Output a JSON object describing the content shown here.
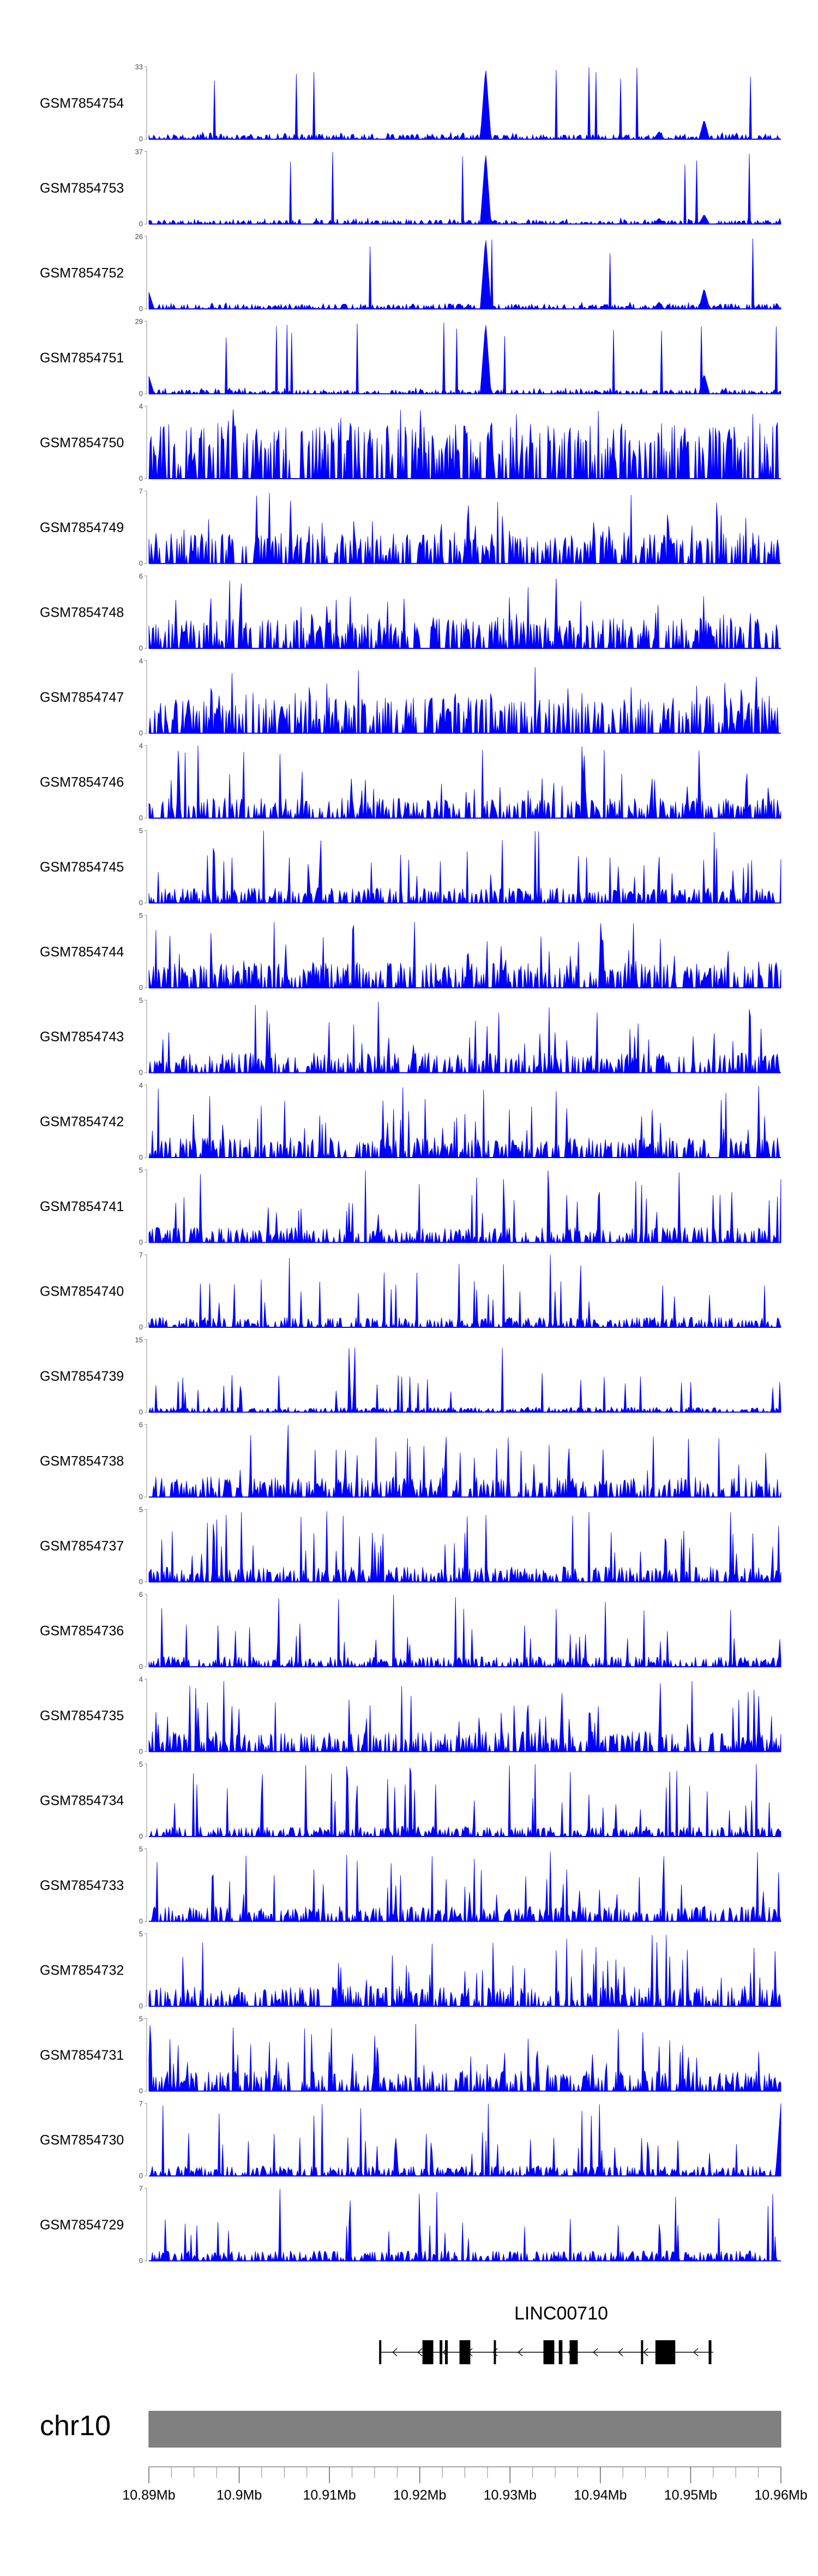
{
  "chart_data": {
    "type": "area",
    "title": "",
    "xlabel": "",
    "ylabel": "",
    "chromosome": "chr10",
    "xlim": [
      10.89,
      10.96
    ],
    "x_unit": "Mb",
    "x_ticks": [
      "10.89Mb",
      "10.9Mb",
      "10.91Mb",
      "10.92Mb",
      "10.93Mb",
      "10.94Mb",
      "10.95Mb",
      "10.96Mb"
    ],
    "x_tick_values": [
      10.89,
      10.9,
      10.91,
      10.92,
      10.93,
      10.94,
      10.95,
      10.96
    ],
    "series_color": "#0000ff",
    "ideogram_color": "#808080",
    "tracks": [
      {
        "name": "GSM7854754",
        "ymax": 33,
        "peaks": [
          [
            10.9273,
            33
          ],
          [
            10.9515,
            9
          ],
          [
            10.9465,
            3.5
          ]
        ],
        "baseline": 0.05,
        "noise": 0.08,
        "seed": 1
      },
      {
        "name": "GSM7854753",
        "ymax": 37,
        "peaks": [
          [
            10.9273,
            37
          ],
          [
            10.9515,
            5
          ],
          [
            10.9465,
            3
          ]
        ],
        "baseline": 0.04,
        "noise": 0.07,
        "seed": 2
      },
      {
        "name": "GSM7854752",
        "ymax": 26,
        "peaks": [
          [
            10.9273,
            26
          ],
          [
            10.9515,
            7.5
          ],
          [
            10.89,
            6
          ],
          [
            10.9465,
            2.5
          ]
        ],
        "baseline": 0.05,
        "noise": 0.08,
        "seed": 3
      },
      {
        "name": "GSM7854751",
        "ymax": 29,
        "peaks": [
          [
            10.9273,
            29
          ],
          [
            10.9515,
            8
          ],
          [
            10.89,
            7
          ]
        ],
        "baseline": 0.04,
        "noise": 0.07,
        "seed": 4
      },
      {
        "name": "GSM7854750",
        "ymax": 4,
        "peaks": [],
        "baseline": 0.55,
        "noise": 0.6,
        "seed": 5
      },
      {
        "name": "GSM7854749",
        "ymax": 7,
        "peaks": [],
        "baseline": 0.3,
        "noise": 0.6,
        "seed": 6
      },
      {
        "name": "GSM7854748",
        "ymax": 6,
        "peaks": [],
        "baseline": 0.3,
        "noise": 0.6,
        "seed": 7
      },
      {
        "name": "GSM7854747",
        "ymax": 4,
        "peaks": [],
        "baseline": 0.35,
        "noise": 0.6,
        "seed": 8
      },
      {
        "name": "GSM7854746",
        "ymax": 4,
        "peaks": [],
        "baseline": 0.2,
        "noise": 0.55,
        "seed": 9
      },
      {
        "name": "GSM7854745",
        "ymax": 5,
        "peaks": [],
        "baseline": 0.15,
        "noise": 0.6,
        "seed": 10
      },
      {
        "name": "GSM7854744",
        "ymax": 5,
        "peaks": [],
        "baseline": 0.25,
        "noise": 0.6,
        "seed": 11
      },
      {
        "name": "GSM7854743",
        "ymax": 5,
        "peaks": [],
        "baseline": 0.2,
        "noise": 0.6,
        "seed": 12
      },
      {
        "name": "GSM7854742",
        "ymax": 4,
        "peaks": [],
        "baseline": 0.2,
        "noise": 0.6,
        "seed": 13
      },
      {
        "name": "GSM7854741",
        "ymax": 5,
        "peaks": [],
        "baseline": 0.15,
        "noise": 0.6,
        "seed": 14
      },
      {
        "name": "GSM7854740",
        "ymax": 7,
        "peaks": [],
        "baseline": 0.1,
        "noise": 0.55,
        "seed": 15
      },
      {
        "name": "GSM7854739",
        "ymax": 15,
        "peaks": [],
        "baseline": 0.05,
        "noise": 0.45,
        "seed": 16
      },
      {
        "name": "GSM7854738",
        "ymax": 6,
        "peaks": [],
        "baseline": 0.2,
        "noise": 0.6,
        "seed": 17
      },
      {
        "name": "GSM7854737",
        "ymax": 5,
        "peaks": [],
        "baseline": 0.15,
        "noise": 0.6,
        "seed": 18
      },
      {
        "name": "GSM7854736",
        "ymax": 6,
        "peaks": [],
        "baseline": 0.1,
        "noise": 0.5,
        "seed": 19
      },
      {
        "name": "GSM7854735",
        "ymax": 4,
        "peaks": [],
        "baseline": 0.2,
        "noise": 0.6,
        "seed": 20
      },
      {
        "name": "GSM7854734",
        "ymax": 5,
        "peaks": [],
        "baseline": 0.1,
        "noise": 0.6,
        "seed": 21
      },
      {
        "name": "GSM7854733",
        "ymax": 5,
        "peaks": [],
        "baseline": 0.15,
        "noise": 0.6,
        "seed": 22
      },
      {
        "name": "GSM7854732",
        "ymax": 5,
        "peaks": [],
        "baseline": 0.2,
        "noise": 0.6,
        "seed": 23
      },
      {
        "name": "GSM7854731",
        "ymax": 5,
        "peaks": [],
        "baseline": 0.2,
        "noise": 0.6,
        "seed": 24
      },
      {
        "name": "GSM7854730",
        "ymax": 7,
        "peaks": [
          [
            10.96,
            7
          ]
        ],
        "baseline": 0.1,
        "noise": 0.5,
        "seed": 25
      },
      {
        "name": "GSM7854729",
        "ymax": 7,
        "peaks": [],
        "baseline": 0.1,
        "noise": 0.5,
        "seed": 26
      }
    ],
    "gene": {
      "name": "LINC00710",
      "strand": "-",
      "start": 10.9155,
      "end": 10.9525,
      "exons": [
        [
          10.9155,
          10.9157
        ],
        [
          10.9203,
          10.9215
        ],
        [
          10.9222,
          10.9225
        ],
        [
          10.9228,
          10.9231
        ],
        [
          10.9244,
          10.9256
        ],
        [
          10.9282,
          10.9284
        ],
        [
          10.9337,
          10.9349
        ],
        [
          10.9354,
          10.9358
        ],
        [
          10.9366,
          10.9375
        ],
        [
          10.9445,
          10.9447
        ],
        [
          10.9461,
          10.9483
        ],
        [
          10.952,
          10.9523
        ]
      ]
    }
  }
}
